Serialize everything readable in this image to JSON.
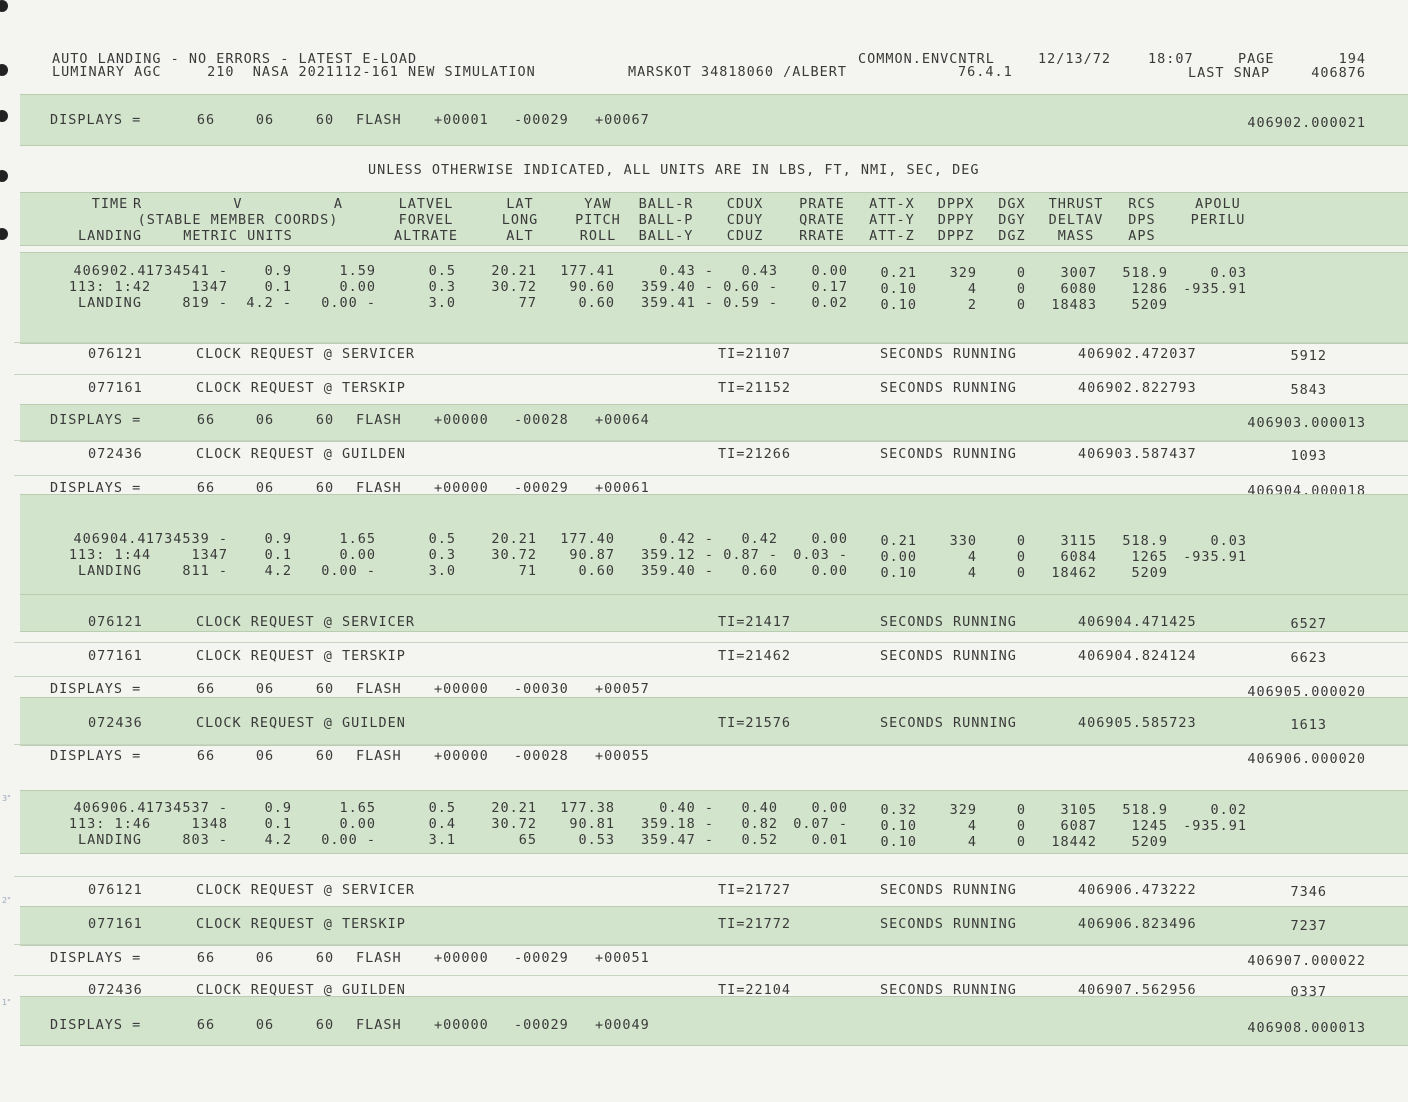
{
  "header": {
    "line1_left": "AUTO LANDING - NO ERRORS - LATEST E-LOAD",
    "line2_left": "LUMINARY AGC     210  NASA 2021112-161 NEW SIMULATION",
    "marskot": "MARSKOT 34818060 /ALBERT",
    "common": "COMMON.ENVCNTRL",
    "version": "76.4.1",
    "date": "12/13/72",
    "time": "18:07",
    "page_label": "PAGE",
    "page_num": "194",
    "last_snap_label": "LAST SNAP",
    "last_snap_value": "406876"
  },
  "units_note": "UNLESS OTHERWISE INDICATED, ALL UNITS ARE IN LBS, FT, NMI, SEC, DEG",
  "columns": {
    "time": [
      "TIME",
      "",
      "LANDING"
    ],
    "rva": [
      "R          V          A",
      "(STABLE MEMBER COORDS)",
      "METRIC UNITS"
    ],
    "latvel": [
      "LATVEL",
      "FORVEL",
      "ALTRATE"
    ],
    "lat": [
      "LAT",
      "LONG",
      "ALT"
    ],
    "yaw": [
      "YAW",
      "PITCH",
      "ROLL"
    ],
    "ball": [
      "BALL-R",
      "BALL-P",
      "BALL-Y"
    ],
    "cdu": [
      "CDUX",
      "CDUY",
      "CDUZ"
    ],
    "rate": [
      "PRATE",
      "QRATE",
      "RRATE"
    ],
    "att": [
      "ATT-X",
      "ATT-Y",
      "ATT-Z"
    ],
    "dpp": [
      "DPPX",
      "DPPY",
      "DPPZ"
    ],
    "dg": [
      "DGX",
      "DGY",
      "DGZ"
    ],
    "thrust": [
      "THRUST",
      "DELTAV",
      "MASS"
    ],
    "rcs": [
      "RCS",
      "DPS",
      "APS"
    ],
    "apolu": [
      "APOLU",
      "PERILU",
      ""
    ]
  },
  "displays_label": "DISPLAYS =",
  "records": [
    {
      "kind": "disp",
      "a": "66",
      "b": "06",
      "c": "60",
      "flash": "FLASH",
      "v1": "+00001",
      "v2": "-00029",
      "v3": "+00067",
      "stamp": "406902.000021"
    },
    {
      "kind": "data",
      "rows": [
        [
          "406902.4",
          "1734541 -",
          "0.9",
          "1.59",
          "0.5",
          "20.21",
          "177.41",
          "0.43 -",
          "0.43",
          "0.00",
          "0.21",
          "329",
          "0",
          "3007",
          "518.9",
          "0.03"
        ],
        [
          "113: 1:42",
          "1347",
          "0.1",
          "0.00",
          "0.3",
          "30.72",
          "90.60",
          "359.40 -",
          "0.60 -",
          "0.17",
          "0.10",
          "4",
          "0",
          "6080",
          "1286",
          "-935.91"
        ],
        [
          "LANDING",
          "819 -",
          "4.2 -",
          "0.00 -",
          "3.0",
          "77",
          "0.60",
          "359.41 -",
          "0.59 -",
          "0.02",
          "0.10",
          "2",
          "0",
          "18483",
          "5209",
          ""
        ]
      ]
    },
    {
      "kind": "clock",
      "id": "076121",
      "req": "CLOCK REQUEST @ SERVICER",
      "ti": "TI=21107",
      "run": "SECONDS RUNNING",
      "stamp": "406902.472037",
      "n": "5912"
    },
    {
      "kind": "clock",
      "id": "077161",
      "req": "CLOCK REQUEST @ TERSKIP",
      "ti": "TI=21152",
      "run": "SECONDS RUNNING",
      "stamp": "406902.822793",
      "n": "5843"
    },
    {
      "kind": "disp",
      "a": "66",
      "b": "06",
      "c": "60",
      "flash": "FLASH",
      "v1": "+00000",
      "v2": "-00028",
      "v3": "+00064",
      "stamp": "406903.000013"
    },
    {
      "kind": "clock",
      "id": "072436",
      "req": "CLOCK REQUEST @ GUILDEN",
      "ti": "TI=21266",
      "run": "SECONDS RUNNING",
      "stamp": "406903.587437",
      "n": "1093"
    },
    {
      "kind": "disp",
      "a": "66",
      "b": "06",
      "c": "60",
      "flash": "FLASH",
      "v1": "+00000",
      "v2": "-00029",
      "v3": "+00061",
      "stamp": "406904.000018"
    },
    {
      "kind": "data",
      "rows": [
        [
          "406904.4",
          "1734539 -",
          "0.9",
          "1.65",
          "0.5",
          "20.21",
          "177.40",
          "0.42 -",
          "0.42",
          "0.00",
          "0.21",
          "330",
          "0",
          "3115",
          "518.9",
          "0.03"
        ],
        [
          "113: 1:44",
          "1347",
          "0.1",
          "0.00",
          "0.3",
          "30.72",
          "90.87",
          "359.12 -",
          "0.87 -",
          "0.03 -",
          "0.00",
          "4",
          "0",
          "6084",
          "1265",
          "-935.91"
        ],
        [
          "LANDING",
          "811 -",
          "4.2",
          "0.00 -",
          "3.0",
          "71",
          "0.60",
          "359.40 -",
          "0.60",
          "0.00",
          "0.10",
          "4",
          "0",
          "18462",
          "5209",
          ""
        ]
      ]
    },
    {
      "kind": "clock",
      "id": "076121",
      "req": "CLOCK REQUEST @ SERVICER",
      "ti": "TI=21417",
      "run": "SECONDS RUNNING",
      "stamp": "406904.471425",
      "n": "6527"
    },
    {
      "kind": "clock",
      "id": "077161",
      "req": "CLOCK REQUEST @ TERSKIP",
      "ti": "TI=21462",
      "run": "SECONDS RUNNING",
      "stamp": "406904.824124",
      "n": "6623"
    },
    {
      "kind": "disp",
      "a": "66",
      "b": "06",
      "c": "60",
      "flash": "FLASH",
      "v1": "+00000",
      "v2": "-00030",
      "v3": "+00057",
      "stamp": "406905.000020"
    },
    {
      "kind": "clock",
      "id": "072436",
      "req": "CLOCK REQUEST @ GUILDEN",
      "ti": "TI=21576",
      "run": "SECONDS RUNNING",
      "stamp": "406905.585723",
      "n": "1613"
    },
    {
      "kind": "disp",
      "a": "66",
      "b": "06",
      "c": "60",
      "flash": "FLASH",
      "v1": "+00000",
      "v2": "-00028",
      "v3": "+00055",
      "stamp": "406906.000020"
    },
    {
      "kind": "data",
      "rows": [
        [
          "406906.4",
          "1734537 -",
          "0.9",
          "1.65",
          "0.5",
          "20.21",
          "177.38",
          "0.40 -",
          "0.40",
          "0.00",
          "0.32",
          "329",
          "0",
          "3105",
          "518.9",
          "0.02"
        ],
        [
          "113: 1:46",
          "1348",
          "0.1",
          "0.00",
          "0.4",
          "30.72",
          "90.81",
          "359.18 -",
          "0.82",
          "0.07 -",
          "0.10",
          "4",
          "0",
          "6087",
          "1245",
          "-935.91"
        ],
        [
          "LANDING",
          "803 -",
          "4.2",
          "0.00 -",
          "3.1",
          "65",
          "0.53",
          "359.47 -",
          "0.52",
          "0.01",
          "0.10",
          "4",
          "0",
          "18442",
          "5209",
          ""
        ]
      ]
    },
    {
      "kind": "clock",
      "id": "076121",
      "req": "CLOCK REQUEST @ SERVICER",
      "ti": "TI=21727",
      "run": "SECONDS RUNNING",
      "stamp": "406906.473222",
      "n": "7346"
    },
    {
      "kind": "clock",
      "id": "077161",
      "req": "CLOCK REQUEST @ TERSKIP",
      "ti": "TI=21772",
      "run": "SECONDS RUNNING",
      "stamp": "406906.823496",
      "n": "7237"
    },
    {
      "kind": "disp",
      "a": "66",
      "b": "06",
      "c": "60",
      "flash": "FLASH",
      "v1": "+00000",
      "v2": "-00029",
      "v3": "+00051",
      "stamp": "406907.000022"
    },
    {
      "kind": "clock",
      "id": "072436",
      "req": "CLOCK REQUEST @ GUILDEN",
      "ti": "TI=22104",
      "run": "SECONDS RUNNING",
      "stamp": "406907.562956",
      "n": "0337"
    },
    {
      "kind": "disp",
      "a": "66",
      "b": "06",
      "c": "60",
      "flash": "FLASH",
      "v1": "+00000",
      "v2": "-00029",
      "v3": "+00049",
      "stamp": "406908.000013"
    }
  ],
  "ruler": [
    "3\"",
    "2\"",
    "1\""
  ]
}
